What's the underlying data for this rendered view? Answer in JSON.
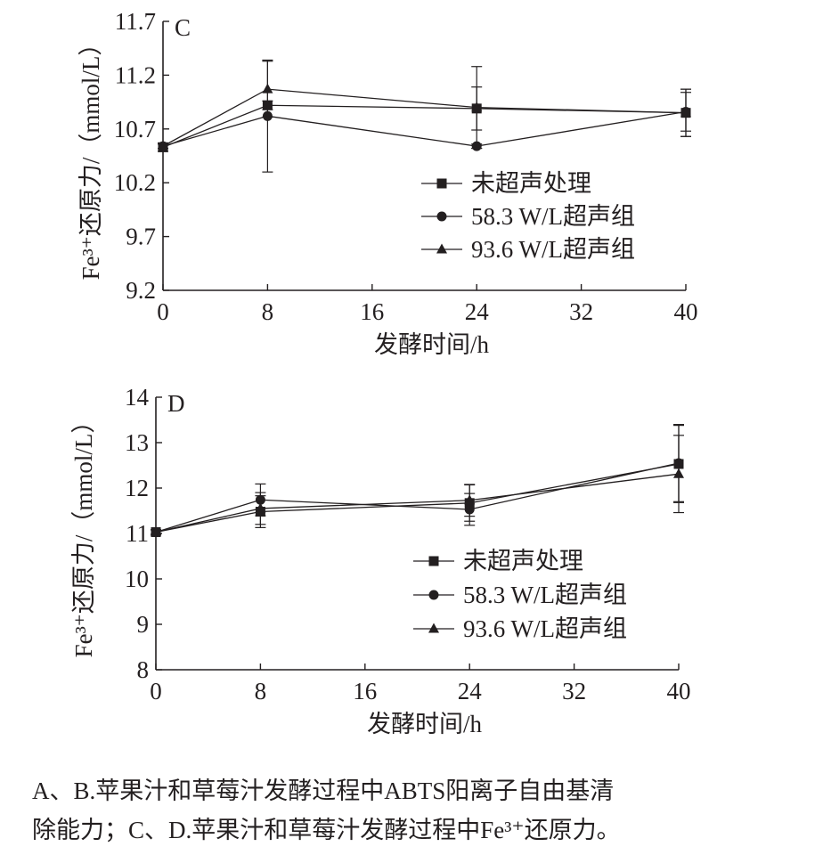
{
  "chart_data": [
    {
      "type": "line",
      "panel_label": "C",
      "xlabel": "发酵时间/h",
      "ylabel": "Fe³⁺还原力/（mmol/L）",
      "xlim": [
        0,
        40
      ],
      "ylim": [
        9.2,
        11.7
      ],
      "xticks": [
        0,
        8,
        16,
        24,
        32,
        40
      ],
      "yticks": [
        9.2,
        9.7,
        10.2,
        10.7,
        11.2,
        11.7
      ],
      "x": [
        0,
        8,
        24,
        40
      ],
      "legend_position": "center-right",
      "series": [
        {
          "name": "未超声处理",
          "marker": "square",
          "values": [
            10.53,
            10.92,
            10.89,
            10.85
          ],
          "errors": [
            0.04,
            0.04,
            0.2,
            0.22
          ]
        },
        {
          "name": "58.3 W/L超声组",
          "marker": "circle",
          "values": [
            10.54,
            10.82,
            10.54,
            10.86
          ],
          "errors": [
            0.02,
            0.52,
            0.02,
            0.18
          ]
        },
        {
          "name": "93.6 W/L超声组",
          "marker": "triangle",
          "values": [
            10.54,
            11.07,
            10.9,
            10.85
          ],
          "errors": [
            0.02,
            0.26,
            0.38,
            0.22
          ]
        }
      ]
    },
    {
      "type": "line",
      "panel_label": "D",
      "xlabel": "发酵时间/h",
      "ylabel": "Fe³⁺还原力/（mmol/L）",
      "xlim": [
        0,
        40
      ],
      "ylim": [
        8,
        14
      ],
      "xticks": [
        0,
        8,
        16,
        24,
        32,
        40
      ],
      "yticks": [
        8,
        9,
        10,
        11,
        12,
        13,
        14
      ],
      "x": [
        0,
        8,
        24,
        40
      ],
      "legend_position": "bottom-right",
      "series": [
        {
          "name": "未超声处理",
          "marker": "square",
          "values": [
            11.03,
            11.48,
            11.67,
            12.53
          ],
          "errors": [
            0.05,
            0.35,
            0.4,
            0.85
          ]
        },
        {
          "name": "58.3 W/L超声组",
          "marker": "circle",
          "values": [
            11.03,
            11.74,
            11.53,
            12.55
          ],
          "errors": [
            0.05,
            0.35,
            0.35,
            0.85
          ]
        },
        {
          "name": "93.6 W/L超声组",
          "marker": "triangle",
          "values": [
            11.03,
            11.55,
            11.73,
            12.31
          ],
          "errors": [
            0.05,
            0.35,
            0.35,
            0.85
          ]
        }
      ]
    }
  ],
  "caption": {
    "line1": "A、B.苹果汁和草莓汁发酵过程中ABTS阳离子自由基清",
    "line2": "除能力；C、D.苹果汁和草莓汁发酵过程中Fe³⁺还原力。"
  }
}
